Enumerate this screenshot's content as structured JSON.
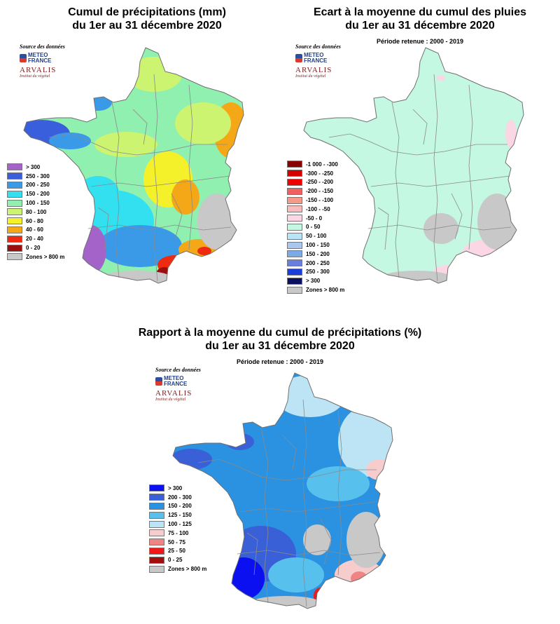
{
  "map1": {
    "title_line1": "Cumul de précipitations (mm)",
    "title_line2": "du 1er au 31 décembre 2020",
    "source_label": "Source des données",
    "logo_meteo_line1": "METEO",
    "logo_meteo_line2": "FRANCE",
    "logo_arvalis": "ARVALIS",
    "logo_arvalis_tagline": "Institut du végétal",
    "legend": [
      {
        "label": "> 300",
        "color": "#a463c9"
      },
      {
        "label": "250 - 300",
        "color": "#3a5fdc"
      },
      {
        "label": "200 - 250",
        "color": "#3b9ae8"
      },
      {
        "label": "150 - 200",
        "color": "#33e0ef"
      },
      {
        "label": "100 - 150",
        "color": "#8ff0b0"
      },
      {
        "label": "80 - 100",
        "color": "#cdf470"
      },
      {
        "label": "60 - 80",
        "color": "#f4f02a"
      },
      {
        "label": "40 - 60",
        "color": "#f4a818"
      },
      {
        "label": "20 - 40",
        "color": "#ee2a10"
      },
      {
        "label": "0 - 20",
        "color": "#9a0f0f"
      },
      {
        "label": "Zones > 800 m",
        "color": "#c8c8c8"
      }
    ]
  },
  "map2": {
    "title_line1": "Ecart à la moyenne du cumul des pluies",
    "title_line2": "du 1er au 31 décembre 2020",
    "subtitle": "Période retenue : 2000 - 2019",
    "source_label": "Source des données",
    "logo_meteo_line1": "METEO",
    "logo_meteo_line2": "FRANCE",
    "logo_arvalis": "ARVALIS",
    "logo_arvalis_tagline": "Institut du végétal",
    "legend": [
      {
        "label": "-1 000 - -300",
        "color": "#8b0000"
      },
      {
        "label": "-300 - -250",
        "color": "#d40000"
      },
      {
        "label": "-250 - -200",
        "color": "#f00000"
      },
      {
        "label": "-200 - -150",
        "color": "#f06060"
      },
      {
        "label": "-150 - -100",
        "color": "#f59a8a"
      },
      {
        "label": "-100 - -50",
        "color": "#f8bcbc"
      },
      {
        "label": "-50 - 0",
        "color": "#fbd6e4"
      },
      {
        "label": "0 - 50",
        "color": "#c4f8e2"
      },
      {
        "label": "50 - 100",
        "color": "#b8e6f8"
      },
      {
        "label": "100 - 150",
        "color": "#a8c8f0"
      },
      {
        "label": "150 - 200",
        "color": "#7aaae8"
      },
      {
        "label": "200 - 250",
        "color": "#6a7ee0"
      },
      {
        "label": "250 - 300",
        "color": "#1a3ed8"
      },
      {
        "label": "> 300",
        "color": "#0a1060"
      },
      {
        "label": "Zones > 800 m",
        "color": "#c8c8c8"
      }
    ]
  },
  "map3": {
    "title_line1": "Rapport à la moyenne du cumul de précipitations (%)",
    "title_line2": "du 1er au 31 décembre 2020",
    "subtitle": "Période retenue : 2000 - 2019",
    "source_label": "Source des données",
    "logo_meteo_line1": "METEO",
    "logo_meteo_line2": "FRANCE",
    "logo_arvalis": "ARVALIS",
    "logo_arvalis_tagline": "Institut du végétal",
    "legend": [
      {
        "label": "> 300",
        "color": "#0a10f0"
      },
      {
        "label": "200 - 300",
        "color": "#3a60d8"
      },
      {
        "label": "150 - 200",
        "color": "#2a92e0"
      },
      {
        "label": "125 - 150",
        "color": "#58c0ec"
      },
      {
        "label": "100 - 125",
        "color": "#bde4f4"
      },
      {
        "label": "75 - 100",
        "color": "#f6cccc"
      },
      {
        "label": "50 - 75",
        "color": "#f08484"
      },
      {
        "label": "25 - 50",
        "color": "#f01818"
      },
      {
        "label": "0 - 25",
        "color": "#a00e0e"
      },
      {
        "label": "Zones > 800 m",
        "color": "#c8c8c8"
      }
    ]
  }
}
